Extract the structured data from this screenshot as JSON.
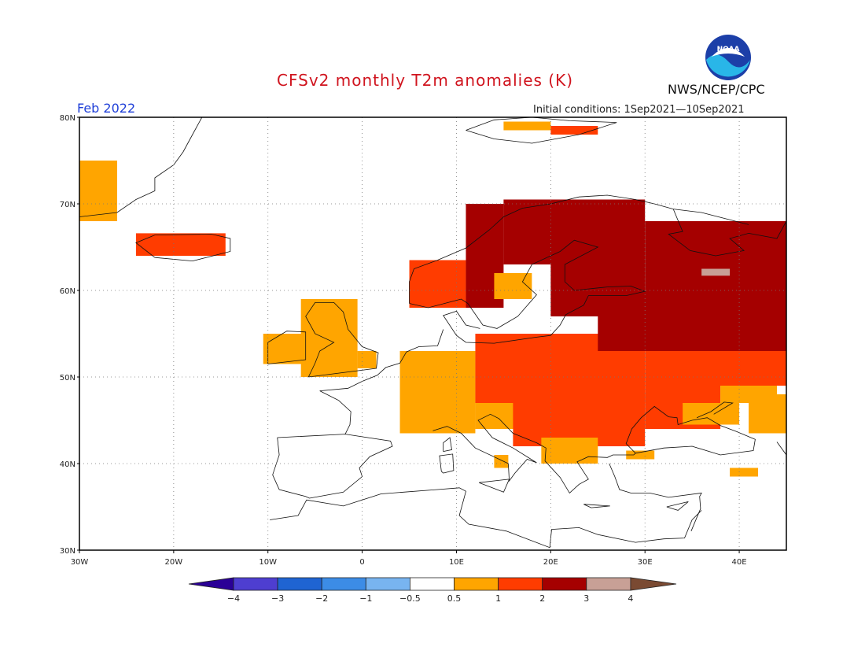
{
  "header": {
    "title": "CFSv2 monthly T2m anomalies (K)",
    "period": "Feb 2022",
    "initial_conditions": "Initial conditions: 1Sep2021—10Sep2021",
    "agency": "NWS/NCEP/CPC",
    "logo_text": "NOAA"
  },
  "map": {
    "lon_range": [
      -30,
      45
    ],
    "lat_range": [
      30,
      80
    ],
    "lon_ticks": [
      "30W",
      "20W",
      "10W",
      "0",
      "10E",
      "20E",
      "30E",
      "40E"
    ],
    "lat_ticks": [
      "30N",
      "40N",
      "50N",
      "60N",
      "70N",
      "80N"
    ],
    "colors": {
      "c05_1": "#ffa500",
      "c1_2": "#ff3c00",
      "c2_3": "#a50000",
      "c3_4": "#c8a096"
    }
  },
  "colorbar": {
    "labels": [
      "−4",
      "−3",
      "−2",
      "−1",
      "−0.5",
      "0.5",
      "1",
      "2",
      "3",
      "4"
    ],
    "colors": [
      "#2a0096",
      "#4e3ed0",
      "#1f64d2",
      "#3c8ce6",
      "#78b4f0",
      "#ffffff",
      "#ffa500",
      "#ff3c00",
      "#a50000",
      "#c8a096",
      "#7a4a32"
    ]
  }
}
